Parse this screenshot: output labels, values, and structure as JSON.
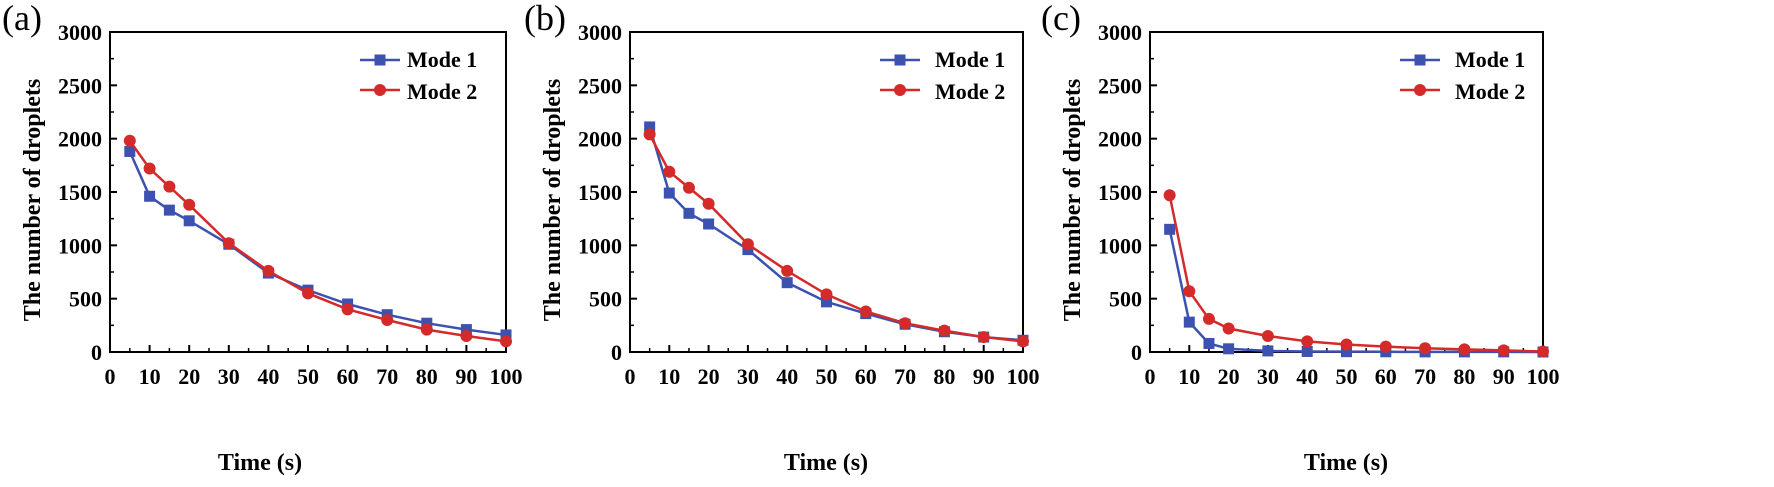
{
  "colors": {
    "mode1": "#3d52b0",
    "mode2": "#d42a2a",
    "axis": "#000000",
    "background": "#ffffff"
  },
  "chart_data": [
    {
      "type": "line",
      "panel_label": "(a)",
      "xlabel": "Time (s)",
      "ylabel": "The number of droplets",
      "xlim": [
        0,
        100
      ],
      "ylim": [
        0,
        3000
      ],
      "xticks": [
        "0",
        "10",
        "20",
        "30",
        "40",
        "50",
        "60",
        "70",
        "80",
        "90",
        "100"
      ],
      "yticks": [
        "0",
        "500",
        "1000",
        "1500",
        "2000",
        "2500",
        "3000"
      ],
      "legend_position": "top-right",
      "series": [
        {
          "name": "Mode 1",
          "marker": "square",
          "color": "#3d52b0",
          "x": [
            5,
            10,
            15,
            20,
            30,
            40,
            50,
            60,
            70,
            80,
            90,
            100
          ],
          "y": [
            1880,
            1460,
            1330,
            1230,
            1010,
            740,
            580,
            450,
            350,
            270,
            210,
            160
          ]
        },
        {
          "name": "Mode 2",
          "marker": "circle",
          "color": "#d42a2a",
          "x": [
            5,
            10,
            15,
            20,
            30,
            40,
            50,
            60,
            70,
            80,
            90,
            100
          ],
          "y": [
            1980,
            1720,
            1550,
            1380,
            1020,
            760,
            550,
            400,
            300,
            210,
            150,
            100
          ]
        }
      ]
    },
    {
      "type": "line",
      "panel_label": "(b)",
      "xlabel": "Time (s)",
      "ylabel": "The number of droplets",
      "xlim": [
        0,
        100
      ],
      "ylim": [
        0,
        3000
      ],
      "xticks": [
        "0",
        "10",
        "20",
        "30",
        "40",
        "50",
        "60",
        "70",
        "80",
        "90",
        "100"
      ],
      "yticks": [
        "0",
        "500",
        "1000",
        "1500",
        "2000",
        "2500",
        "3000"
      ],
      "legend_position": "top-right",
      "series": [
        {
          "name": "Mode 1",
          "marker": "square",
          "color": "#3d52b0",
          "x": [
            5,
            10,
            15,
            20,
            30,
            40,
            50,
            60,
            70,
            80,
            90,
            100
          ],
          "y": [
            2110,
            1490,
            1300,
            1200,
            960,
            650,
            470,
            360,
            260,
            190,
            140,
            110
          ]
        },
        {
          "name": "Mode 2",
          "marker": "circle",
          "color": "#d42a2a",
          "x": [
            5,
            10,
            15,
            20,
            30,
            40,
            50,
            60,
            70,
            80,
            90,
            100
          ],
          "y": [
            2040,
            1690,
            1540,
            1390,
            1010,
            760,
            540,
            380,
            270,
            200,
            140,
            100
          ]
        }
      ]
    },
    {
      "type": "line",
      "panel_label": "(c)",
      "xlabel": "Time (s)",
      "ylabel": "The number of droplets",
      "xlim": [
        0,
        100
      ],
      "ylim": [
        0,
        3000
      ],
      "xticks": [
        "0",
        "10",
        "20",
        "30",
        "40",
        "50",
        "60",
        "70",
        "80",
        "90",
        "100"
      ],
      "yticks": [
        "0",
        "500",
        "1000",
        "1500",
        "2000",
        "2500",
        "3000"
      ],
      "legend_position": "top-right",
      "series": [
        {
          "name": "Mode 1",
          "marker": "square",
          "color": "#3d52b0",
          "x": [
            5,
            10,
            15,
            20,
            30,
            40,
            50,
            60,
            70,
            80,
            90,
            100
          ],
          "y": [
            1150,
            280,
            80,
            30,
            10,
            5,
            3,
            2,
            1,
            1,
            1,
            0
          ]
        },
        {
          "name": "Mode 2",
          "marker": "circle",
          "color": "#d42a2a",
          "x": [
            5,
            10,
            15,
            20,
            30,
            40,
            50,
            60,
            70,
            80,
            90,
            100
          ],
          "y": [
            1470,
            570,
            310,
            220,
            150,
            100,
            70,
            50,
            35,
            25,
            15,
            5
          ]
        }
      ]
    }
  ]
}
